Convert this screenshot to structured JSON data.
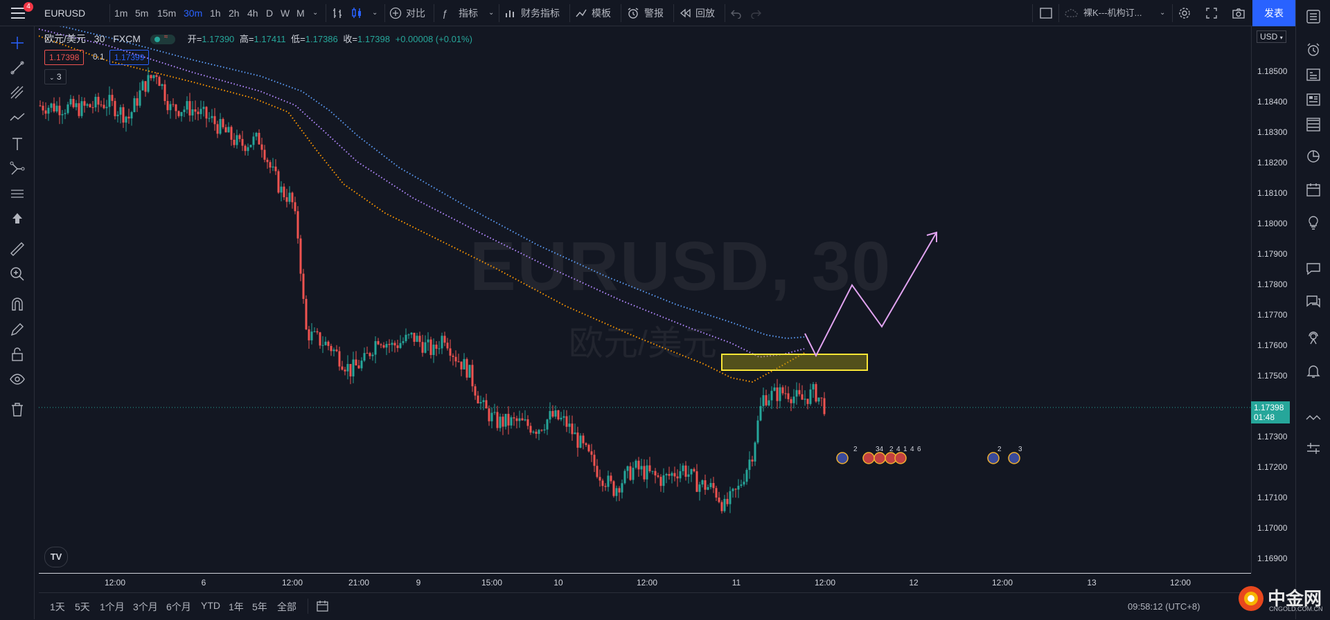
{
  "topbar": {
    "notification_count": "4",
    "symbol": "EURUSD",
    "timeframes": [
      "1m",
      "5m",
      "15m",
      "30m",
      "1h",
      "2h",
      "4h",
      "D",
      "W",
      "M"
    ],
    "active_timeframe": "30m",
    "compare": "对比",
    "indicators": "指标",
    "financials": "财务指标",
    "templates": "模板",
    "alert": "警报",
    "replay": "回放",
    "layout_name": "裸K---机构订...",
    "publish": "发表"
  },
  "legend": {
    "title": "欧元/美元",
    "interval": "30",
    "exchange": "FXCM",
    "open_label": "开=",
    "open": "1.17390",
    "high_label": "高=",
    "high": "1.17411",
    "low_label": "低=",
    "low": "1.17386",
    "close_label": "收=",
    "close": "1.17398",
    "change": "+0.00008 (+0.01%)",
    "sell_price": "1.17398",
    "spread": "0.1",
    "buy_price": "1.17399",
    "indicators_count": "3"
  },
  "watermark": {
    "symbol": "EURUSD, 30",
    "name": "欧元/美元"
  },
  "price_axis": {
    "currency": "USD",
    "ticks": [
      "1.18500",
      "1.18400",
      "1.18300",
      "1.18200",
      "1.18100",
      "1.18000",
      "1.17900",
      "1.17800",
      "1.17700",
      "1.17600",
      "1.17500",
      "1.17300",
      "1.17200",
      "1.17100",
      "1.17000",
      "1.16900"
    ],
    "current_price": "1.17398",
    "countdown": "01:48"
  },
  "time_axis": {
    "ticks": [
      "12:00",
      "6",
      "12:00",
      "21:00",
      "9",
      "15:00",
      "10",
      "12:00",
      "11",
      "12:00",
      "12",
      "12:00",
      "13",
      "12:00"
    ]
  },
  "bottombar": {
    "ranges": [
      "1天",
      "5天",
      "1个月",
      "3个月",
      "6个月",
      "YTD",
      "1年",
      "5年",
      "全部"
    ],
    "clock": "09:58:12 (UTC+8)",
    "logo_text": "中金网",
    "logo_sub": "CNGOLD.COM.CN"
  },
  "events": {
    "counts": [
      "2",
      "34",
      "2",
      "4",
      "1",
      "4",
      "6",
      "2",
      "3"
    ]
  },
  "colors": {
    "up": "#26a69a",
    "down": "#ef5350",
    "ema_fast": "#5b9cf6",
    "ema_mid": "#b388ff",
    "ema_slow": "#ff9800",
    "zone": "#f9e636",
    "arrow": "#e1a3f0"
  }
}
